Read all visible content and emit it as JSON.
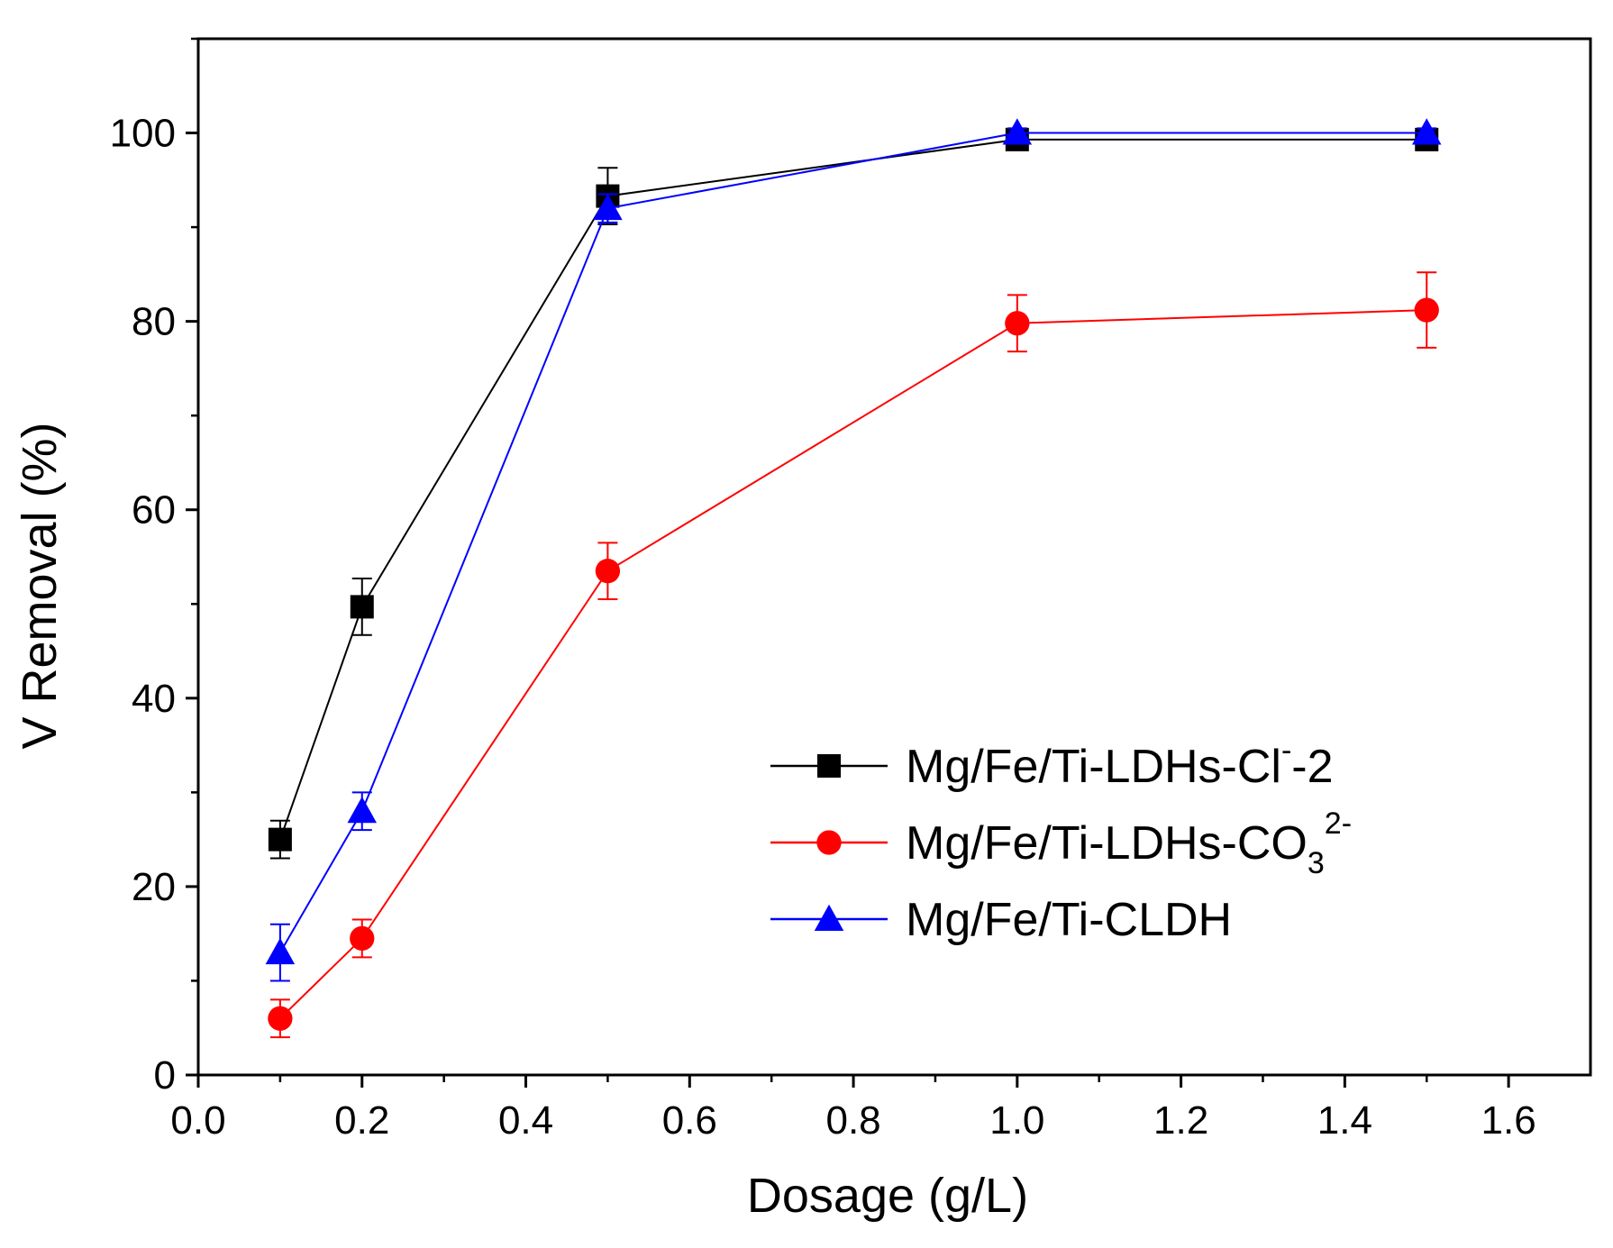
{
  "chart_data": {
    "type": "line",
    "title": "",
    "xlabel": "Dosage (g/L)",
    "ylabel": "V Removal (%)",
    "xlim": [
      0.0,
      1.7
    ],
    "ylim": [
      0,
      110
    ],
    "x_ticks": [
      "0.0",
      "0.2",
      "0.4",
      "0.6",
      "0.8",
      "1.0",
      "1.2",
      "1.4",
      "1.6"
    ],
    "x_tick_values": [
      0.0,
      0.2,
      0.4,
      0.6,
      0.8,
      1.0,
      1.2,
      1.4,
      1.6
    ],
    "y_ticks": [
      "0",
      "20",
      "40",
      "60",
      "80",
      "100"
    ],
    "y_tick_values": [
      0,
      20,
      40,
      60,
      80,
      100
    ],
    "grid": false,
    "legend_position": "center-right",
    "x": [
      0.1,
      0.2,
      0.5,
      1.0,
      1.5
    ],
    "series": [
      {
        "name": "Mg/Fe/Ti-LDHs-Cl",
        "name_sup": "-",
        "name_tail": "-2",
        "color": "#000000",
        "marker": "square",
        "values": [
          25.0,
          49.7,
          93.3,
          99.3,
          99.3
        ],
        "errors": [
          2.0,
          3.0,
          3.0,
          0.6,
          0.6
        ]
      },
      {
        "name": "Mg/Fe/Ti-LDHs-CO",
        "name_sub": "3",
        "name_sup": "2-",
        "color": "#ff0000",
        "marker": "circle",
        "values": [
          6.0,
          14.5,
          53.5,
          79.8,
          81.2
        ],
        "errors": [
          2.0,
          2.0,
          3.0,
          3.0,
          4.0
        ]
      },
      {
        "name": "Mg/Fe/Ti-CLDH",
        "color": "#0000ff",
        "marker": "triangle",
        "values": [
          13.0,
          28.0,
          92.0,
          100.0,
          100.0
        ],
        "errors": [
          3.0,
          2.0,
          1.5,
          0.5,
          0.5
        ]
      }
    ]
  }
}
